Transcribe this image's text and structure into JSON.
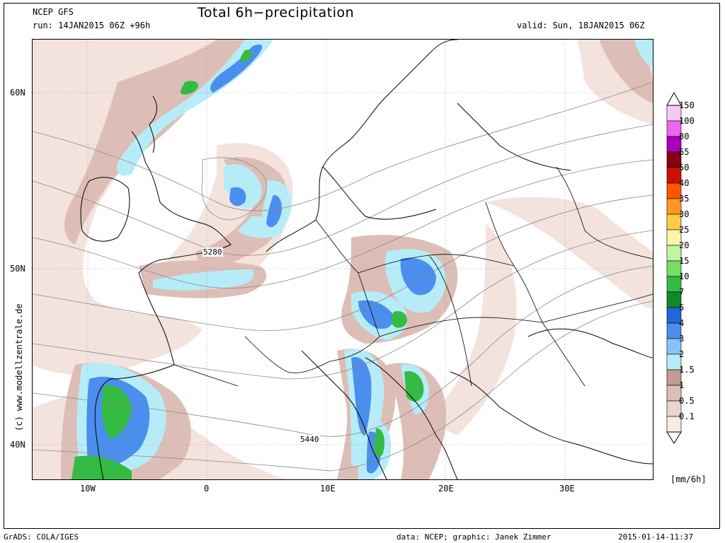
{
  "header": {
    "model": "NCEP GFS",
    "run": "run: 14JAN2015 06Z +96h",
    "title": "Total 6h−precipitation",
    "valid": "valid: Sun, 18JAN2015 06Z"
  },
  "map": {
    "lat_labels": [
      "60N",
      "50N",
      "40N"
    ],
    "lon_labels": [
      "10W",
      "0",
      "10E",
      "20E",
      "30E"
    ],
    "contour_labels": [
      "5280",
      "5440"
    ],
    "side_credit": "(c) www.modellzentrale.de"
  },
  "legend": {
    "unit": "[mm/6h]",
    "levels": [
      {
        "label": "150",
        "color": "#f7c8f2"
      },
      {
        "label": "100",
        "color": "#ee66ee"
      },
      {
        "label": "80",
        "color": "#aa00bb"
      },
      {
        "label": "65",
        "color": "#880011"
      },
      {
        "label": "50",
        "color": "#cc1100"
      },
      {
        "label": "40",
        "color": "#ff5500"
      },
      {
        "label": "35",
        "color": "#ff9922"
      },
      {
        "label": "30",
        "color": "#ffcc44"
      },
      {
        "label": "25",
        "color": "#fff5a8"
      },
      {
        "label": "20",
        "color": "#bff5a6"
      },
      {
        "label": "15",
        "color": "#77dd66"
      },
      {
        "label": "10",
        "color": "#33bb44"
      },
      {
        "label": "7",
        "color": "#108a28"
      },
      {
        "label": "5",
        "color": "#2266dd"
      },
      {
        "label": "4",
        "color": "#4a8eee"
      },
      {
        "label": "3",
        "color": "#86c4f7"
      },
      {
        "label": "2",
        "color": "#b6ecf8"
      },
      {
        "label": "1.5",
        "color": "#c49a92"
      },
      {
        "label": "1",
        "color": "#ddbeb6"
      },
      {
        "label": "0.5",
        "color": "#ead6cc"
      },
      {
        "label": "0.1",
        "color": "#f8ebe4"
      }
    ]
  },
  "footer": {
    "left": "GrADS: COLA/IGES",
    "middle": "data: NCEP; graphic: Janek Zimmer",
    "right": "2015-01-14-11:37"
  }
}
